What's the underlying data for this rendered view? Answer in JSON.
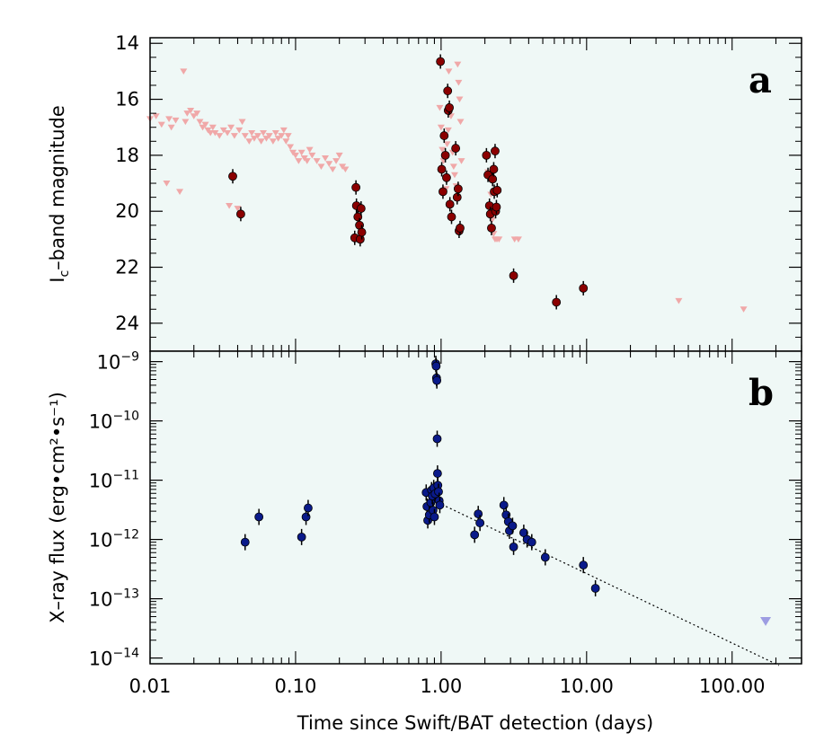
{
  "chart_data": [
    {
      "panel": "a",
      "type": "scatter",
      "ylabel": "I",
      "ylabel_sub": "c",
      "ylabel_rest": "–band magnitude",
      "ylim": [
        25.0,
        13.8
      ],
      "y_inverted": true,
      "yticks": [
        14,
        16,
        18,
        20,
        22,
        24
      ],
      "background": "#eff8f6",
      "series": [
        {
          "marker": "circle",
          "color": "#8b0000",
          "points": [
            [
              0.037,
              18.75
            ],
            [
              0.042,
              20.1
            ],
            [
              0.255,
              20.95
            ],
            [
              0.26,
              19.15
            ],
            [
              0.262,
              19.8
            ],
            [
              0.268,
              20.2
            ],
            [
              0.275,
              20.5
            ],
            [
              0.278,
              21.0
            ],
            [
              0.282,
              19.9
            ],
            [
              0.285,
              20.75
            ],
            [
              0.99,
              14.65
            ],
            [
              1.01,
              18.5
            ],
            [
              1.03,
              19.3
            ],
            [
              1.05,
              17.3
            ],
            [
              1.07,
              18.0
            ],
            [
              1.09,
              18.8
            ],
            [
              1.11,
              15.7
            ],
            [
              1.12,
              16.4
            ],
            [
              1.14,
              16.3
            ],
            [
              1.15,
              19.75
            ],
            [
              1.18,
              20.2
            ],
            [
              1.26,
              17.75
            ],
            [
              1.29,
              19.5
            ],
            [
              1.31,
              19.2
            ],
            [
              1.33,
              20.7
            ],
            [
              1.35,
              20.6
            ],
            [
              2.05,
              18.0
            ],
            [
              2.1,
              18.7
            ],
            [
              2.15,
              19.8
            ],
            [
              2.18,
              20.1
            ],
            [
              2.22,
              20.6
            ],
            [
              2.26,
              18.85
            ],
            [
              2.3,
              18.5
            ],
            [
              2.32,
              19.3
            ],
            [
              2.35,
              17.85
            ],
            [
              2.37,
              20.0
            ],
            [
              2.4,
              19.85
            ],
            [
              2.43,
              19.25
            ],
            [
              3.15,
              22.3
            ],
            [
              6.2,
              23.25
            ],
            [
              9.5,
              22.75
            ]
          ]
        },
        {
          "marker": "triangle-down",
          "color": "#f0a8a8",
          "points": [
            [
              0.01,
              16.7
            ],
            [
              0.011,
              16.6
            ],
            [
              0.012,
              16.9
            ],
            [
              0.013,
              19.0
            ],
            [
              0.0135,
              16.7
            ],
            [
              0.014,
              17.0
            ],
            [
              0.015,
              16.75
            ],
            [
              0.016,
              19.3
            ],
            [
              0.017,
              15.0
            ],
            [
              0.0175,
              16.8
            ],
            [
              0.018,
              16.5
            ],
            [
              0.019,
              16.4
            ],
            [
              0.02,
              16.6
            ],
            [
              0.021,
              16.5
            ],
            [
              0.022,
              16.8
            ],
            [
              0.023,
              17.0
            ],
            [
              0.024,
              16.9
            ],
            [
              0.025,
              17.1
            ],
            [
              0.026,
              17.2
            ],
            [
              0.027,
              17.0
            ],
            [
              0.028,
              17.2
            ],
            [
              0.03,
              17.3
            ],
            [
              0.032,
              17.1
            ],
            [
              0.034,
              17.2
            ],
            [
              0.035,
              19.8
            ],
            [
              0.036,
              17.0
            ],
            [
              0.038,
              17.3
            ],
            [
              0.04,
              19.9
            ],
            [
              0.041,
              17.1
            ],
            [
              0.043,
              16.8
            ],
            [
              0.045,
              17.3
            ],
            [
              0.048,
              17.5
            ],
            [
              0.05,
              17.2
            ],
            [
              0.052,
              17.4
            ],
            [
              0.055,
              17.3
            ],
            [
              0.058,
              17.5
            ],
            [
              0.06,
              17.2
            ],
            [
              0.063,
              17.4
            ],
            [
              0.066,
              17.3
            ],
            [
              0.07,
              17.5
            ],
            [
              0.073,
              17.2
            ],
            [
              0.076,
              17.4
            ],
            [
              0.08,
              17.3
            ],
            [
              0.083,
              17.1
            ],
            [
              0.086,
              17.5
            ],
            [
              0.089,
              17.3
            ],
            [
              0.092,
              17.7
            ],
            [
              0.096,
              17.9
            ],
            [
              0.1,
              18.0
            ],
            [
              0.105,
              18.2
            ],
            [
              0.11,
              17.9
            ],
            [
              0.115,
              18.1
            ],
            [
              0.12,
              18.2
            ],
            [
              0.125,
              17.8
            ],
            [
              0.13,
              18.0
            ],
            [
              0.14,
              18.2
            ],
            [
              0.15,
              18.4
            ],
            [
              0.16,
              18.1
            ],
            [
              0.17,
              18.3
            ],
            [
              0.18,
              18.5
            ],
            [
              0.19,
              18.2
            ],
            [
              0.2,
              18.0
            ],
            [
              0.21,
              18.4
            ],
            [
              0.22,
              18.5
            ],
            [
              0.98,
              16.3
            ],
            [
              1.0,
              17.0
            ],
            [
              1.02,
              17.8
            ],
            [
              1.04,
              18.2
            ],
            [
              1.06,
              18.8
            ],
            [
              1.08,
              19.2
            ],
            [
              1.1,
              17.6
            ],
            [
              1.12,
              17.1
            ],
            [
              1.13,
              15.0
            ],
            [
              1.17,
              16.6
            ],
            [
              1.2,
              17.9
            ],
            [
              1.22,
              18.4
            ],
            [
              1.24,
              18.7
            ],
            [
              1.27,
              19.1
            ],
            [
              1.3,
              14.75
            ],
            [
              1.32,
              15.4
            ],
            [
              1.34,
              16.0
            ],
            [
              1.36,
              16.8
            ],
            [
              1.38,
              18.2
            ],
            [
              2.1,
              18.6
            ],
            [
              2.2,
              19.4
            ],
            [
              2.25,
              20.3
            ],
            [
              2.3,
              20.8
            ],
            [
              2.35,
              21.0
            ],
            [
              2.42,
              21.0
            ],
            [
              2.5,
              21.0
            ],
            [
              3.2,
              21.0
            ],
            [
              3.4,
              21.0
            ],
            [
              43.0,
              23.2
            ],
            [
              120.0,
              23.5
            ]
          ]
        }
      ]
    },
    {
      "panel": "b",
      "type": "scatter",
      "ylabel": "X–ray flux (erg•cm²•s⁻¹)",
      "xlabel": "Time since Swift/BAT detection (days)",
      "x_scale": "log",
      "y_scale": "log",
      "xlim": [
        0.01,
        300
      ],
      "ylim": [
        8e-15,
        1.5e-09
      ],
      "xtick_values": [
        0.01,
        0.1,
        1,
        10,
        100
      ],
      "xtick_labels": [
        "0.01",
        "0.10",
        "1.00",
        "10.00",
        "100.00"
      ],
      "ytick_labels": [
        {
          "exp": -9,
          "text": "10",
          "sup": "−9"
        },
        {
          "exp": -10,
          "text": "10",
          "sup": "−10"
        },
        {
          "exp": -11,
          "text": "10",
          "sup": "−11"
        },
        {
          "exp": -12,
          "text": "10",
          "sup": "−12"
        },
        {
          "exp": -13,
          "text": "10",
          "sup": "−13"
        },
        {
          "exp": -14,
          "text": "10",
          "sup": "−14"
        }
      ],
      "background": "#eff8f6",
      "series": [
        {
          "marker": "circle",
          "color": "#0a1a8a",
          "points": [
            [
              0.045,
              9e-13
            ],
            [
              0.056,
              2.4e-12
            ],
            [
              0.11,
              1.1e-12
            ],
            [
              0.118,
              2.4e-12
            ],
            [
              0.122,
              3.4e-12
            ],
            [
              0.79,
              6.2e-12
            ],
            [
              0.8,
              3.6e-12
            ],
            [
              0.81,
              2.1e-12
            ],
            [
              0.83,
              2.6e-12
            ],
            [
              0.85,
              4.2e-12
            ],
            [
              0.86,
              6.8e-12
            ],
            [
              0.87,
              5.4e-12
            ],
            [
              0.88,
              3.1e-12
            ],
            [
              0.89,
              7.4e-12
            ],
            [
              0.9,
              2.4e-12
            ],
            [
              0.91,
              5.9e-12
            ],
            [
              0.92,
              9.2e-10
            ],
            [
              0.925,
              8.4e-10
            ],
            [
              0.93,
              5.3e-10
            ],
            [
              0.935,
              4.8e-10
            ],
            [
              0.94,
              5e-11
            ],
            [
              0.945,
              1.3e-11
            ],
            [
              0.95,
              8.2e-12
            ],
            [
              0.96,
              6.4e-12
            ],
            [
              0.97,
              4.5e-12
            ],
            [
              0.98,
              3.8e-12
            ],
            [
              1.7,
              1.2e-12
            ],
            [
              1.8,
              2.7e-12
            ],
            [
              1.85,
              1.9e-12
            ],
            [
              2.7,
              3.8e-12
            ],
            [
              2.8,
              2.6e-12
            ],
            [
              2.9,
              2e-12
            ],
            [
              2.95,
              1.4e-12
            ],
            [
              3.1,
              1.7e-12
            ],
            [
              3.15,
              7.5e-13
            ],
            [
              3.7,
              1.3e-12
            ],
            [
              3.9,
              1e-12
            ],
            [
              4.2,
              9e-13
            ],
            [
              5.2,
              5e-13
            ],
            [
              9.5,
              3.7e-13
            ],
            [
              11.5,
              1.5e-13
            ]
          ]
        },
        {
          "marker": "triangle-down",
          "color": "#9d9de2",
          "points": [
            [
              170.0,
              4.2e-14
            ]
          ]
        },
        {
          "marker": "dotted-line",
          "color": "#000000",
          "points": [
            [
              0.95,
              4.2e-12
            ],
            [
              210,
              7.5e-15
            ]
          ]
        }
      ]
    }
  ]
}
